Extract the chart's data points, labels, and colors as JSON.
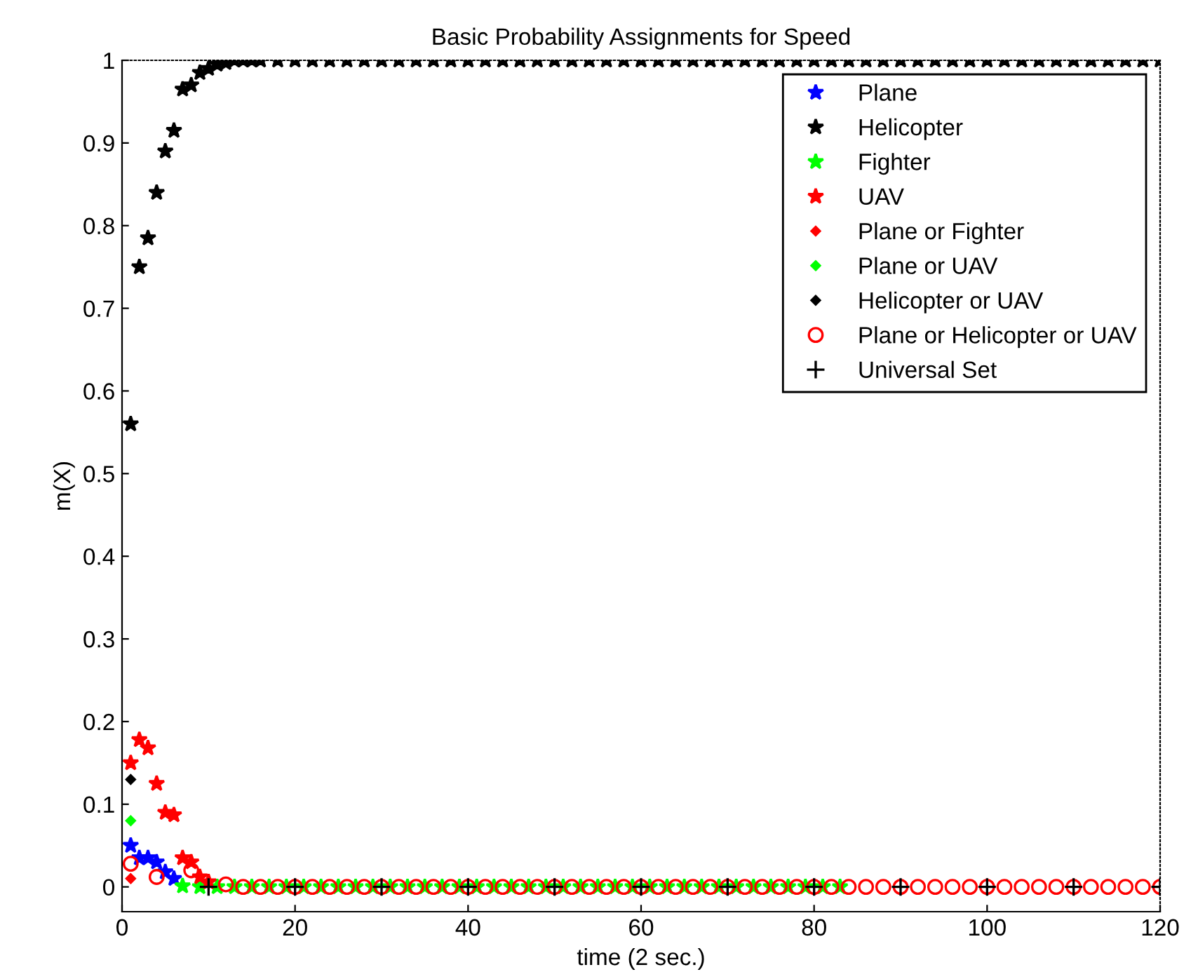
{
  "chart_data": {
    "type": "scatter",
    "title": "Basic Probability Assignments for Speed",
    "xlabel": "time (2 sec.)",
    "ylabel": "m(X)",
    "xlim": [
      0,
      120
    ],
    "ylim": [
      -0.03,
      1
    ],
    "xticks": [
      0,
      20,
      40,
      60,
      80,
      100,
      120
    ],
    "yticks": [
      0,
      0.1,
      0.2,
      0.3,
      0.4,
      0.5,
      0.6,
      0.7,
      0.8,
      0.9,
      1
    ],
    "grid": false,
    "legend": "top right",
    "series": [
      {
        "name": "Plane",
        "color": "#0000ff",
        "marker": "star",
        "x": [
          1,
          2,
          3,
          4,
          5,
          6
        ],
        "values": [
          0.05,
          0.035,
          0.035,
          0.03,
          0.018,
          0.01
        ]
      },
      {
        "name": "Helicopter",
        "color": "#000000",
        "marker": "star",
        "x": [
          1,
          2,
          3,
          4,
          5,
          6,
          7,
          8,
          9,
          10,
          11,
          12,
          13,
          14,
          15,
          16,
          18,
          20,
          22,
          24,
          26,
          28,
          30,
          32,
          34,
          36,
          38,
          40,
          42,
          44,
          46,
          48,
          50,
          52,
          54,
          56,
          58,
          60,
          62,
          64,
          66,
          68,
          70,
          72,
          74,
          76,
          78,
          80,
          82,
          84,
          86,
          88,
          90,
          92,
          94,
          96,
          98,
          100,
          102,
          104,
          106,
          108,
          110,
          112,
          114,
          116,
          118,
          120
        ],
        "values": [
          0.56,
          0.75,
          0.785,
          0.84,
          0.89,
          0.915,
          0.965,
          0.97,
          0.985,
          0.99,
          0.995,
          0.997,
          1,
          1,
          1,
          1,
          1,
          1,
          1,
          1,
          1,
          1,
          1,
          1,
          1,
          1,
          1,
          1,
          1,
          1,
          1,
          1,
          1,
          1,
          1,
          1,
          1,
          1,
          1,
          1,
          1,
          1,
          1,
          1,
          1,
          1,
          1,
          1,
          1,
          1,
          1,
          1,
          1,
          1,
          1,
          1,
          1,
          1,
          1,
          1,
          1,
          1,
          1,
          1,
          1,
          1,
          1,
          1
        ]
      },
      {
        "name": "Fighter",
        "color": "#00ff00",
        "marker": "star",
        "x": [
          7,
          9,
          11,
          13,
          15,
          17,
          19,
          21,
          23,
          25,
          27,
          29,
          31,
          33,
          35,
          37,
          39,
          41,
          43,
          45,
          47,
          49,
          51,
          53,
          55,
          57,
          59,
          61,
          63,
          65,
          67,
          69,
          71,
          73,
          75,
          77,
          79,
          81,
          83
        ],
        "values": [
          0.001,
          0,
          0,
          0,
          0,
          0,
          0,
          0,
          0,
          0,
          0,
          0,
          0,
          0,
          0,
          0,
          0,
          0,
          0,
          0,
          0,
          0,
          0,
          0,
          0,
          0,
          0,
          0,
          0,
          0,
          0,
          0,
          0,
          0,
          0,
          0,
          0,
          0,
          0
        ]
      },
      {
        "name": "UAV",
        "color": "#ff0000",
        "marker": "star",
        "x": [
          1,
          2,
          3,
          4,
          5,
          6,
          7,
          8,
          9,
          10
        ],
        "values": [
          0.15,
          0.178,
          0.168,
          0.125,
          0.09,
          0.087,
          0.035,
          0.03,
          0.012,
          0.006
        ]
      },
      {
        "name": "Plane or Fighter",
        "color": "#ff0000",
        "marker": "diamond",
        "x": [
          1
        ],
        "values": [
          0.01
        ]
      },
      {
        "name": "Plane or UAV",
        "color": "#00ff00",
        "marker": "diamond",
        "x": [
          1
        ],
        "values": [
          0.08
        ]
      },
      {
        "name": "Helicopter or UAV",
        "color": "#000000",
        "marker": "diamond",
        "x": [
          1
        ],
        "values": [
          0.13
        ]
      },
      {
        "name": "Plane or Helicopter or UAV",
        "color": "#ff0000",
        "marker": "circle",
        "x": [
          1,
          4,
          8,
          12,
          14,
          16,
          18,
          20,
          22,
          24,
          26,
          28,
          30,
          32,
          34,
          36,
          38,
          40,
          42,
          44,
          46,
          48,
          50,
          52,
          54,
          56,
          58,
          60,
          62,
          64,
          66,
          68,
          70,
          72,
          74,
          76,
          78,
          80,
          82,
          84,
          86,
          88,
          90,
          92,
          94,
          96,
          98,
          100,
          102,
          104,
          106,
          108,
          110,
          112,
          114,
          116,
          118,
          120
        ],
        "values": [
          0.028,
          0.012,
          0.02,
          0.003,
          0,
          0,
          0,
          0,
          0,
          0,
          0,
          0,
          0,
          0,
          0,
          0,
          0,
          0,
          0,
          0,
          0,
          0,
          0,
          0,
          0,
          0,
          0,
          0,
          0,
          0,
          0,
          0,
          0,
          0,
          0,
          0,
          0,
          0,
          0,
          0,
          0,
          0,
          0,
          0,
          0,
          0,
          0,
          0,
          0,
          0,
          0,
          0,
          0,
          0,
          0,
          0,
          0,
          0
        ]
      },
      {
        "name": "Universal Set",
        "color": "#000000",
        "marker": "cross",
        "x": [
          10,
          20,
          30,
          40,
          50,
          60,
          70,
          80,
          90,
          100,
          110,
          120
        ],
        "values": [
          0,
          0,
          0,
          0,
          0,
          0,
          0,
          0,
          0,
          0,
          0,
          0
        ]
      }
    ]
  }
}
